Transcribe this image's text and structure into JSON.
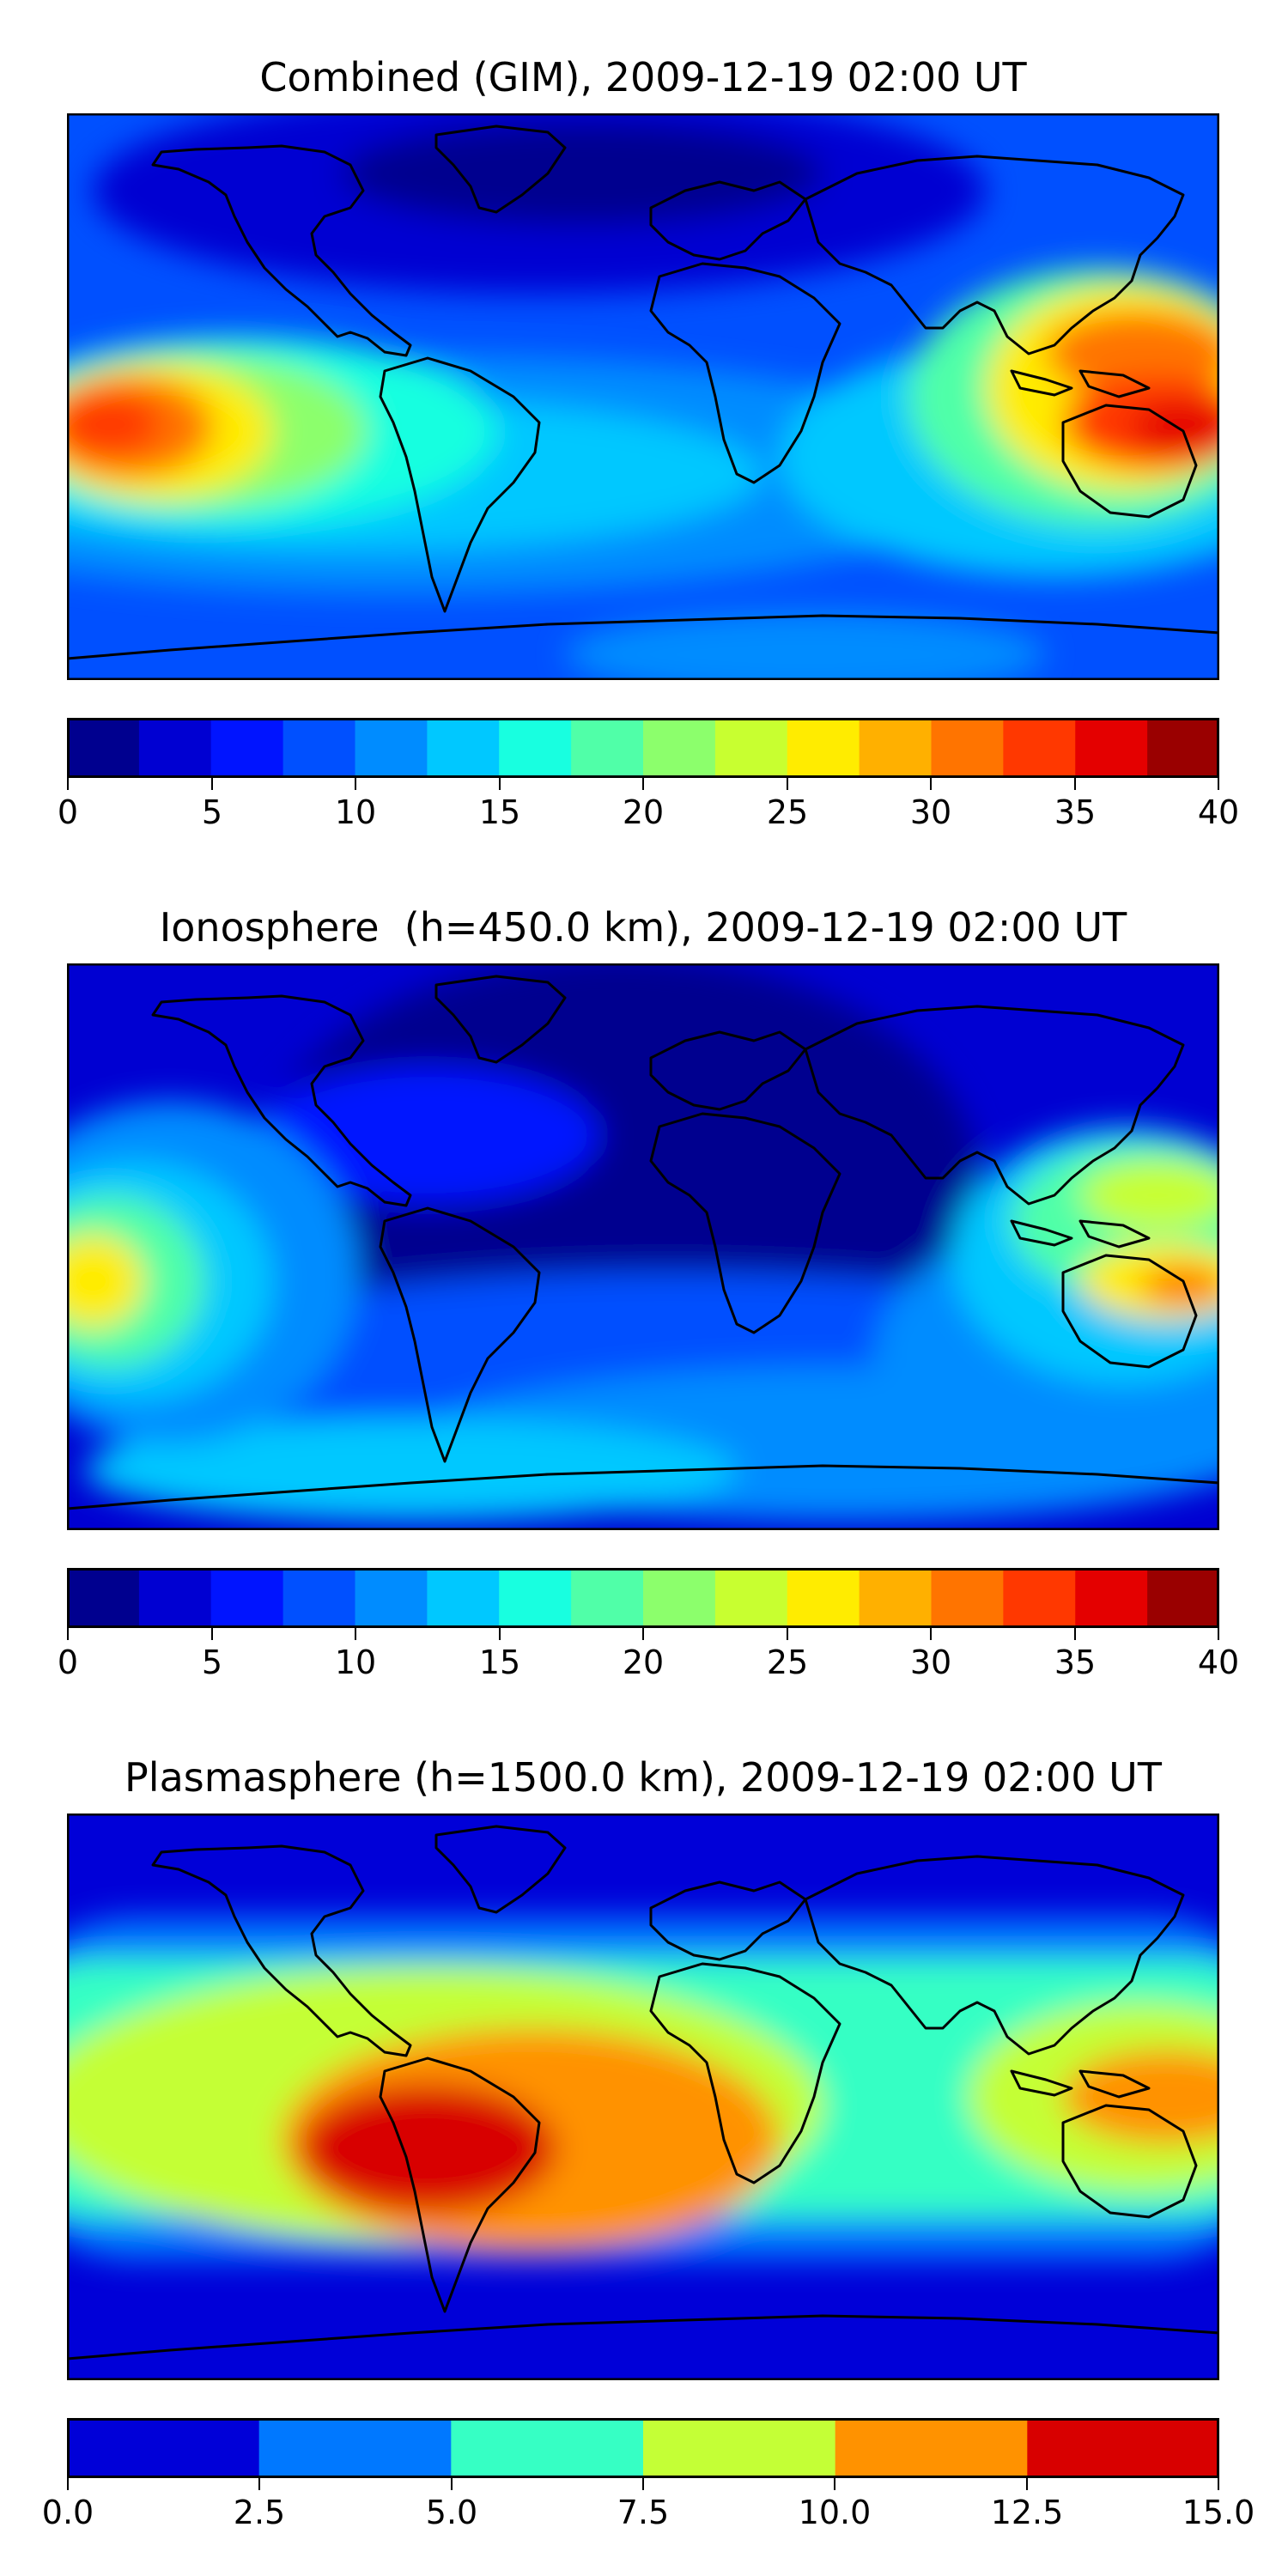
{
  "panels": [
    {
      "title": "Combined (GIM), 2009-12-19 02:00 UT",
      "colorbar": {
        "levels": [
          0,
          2.5,
          5,
          7.5,
          10,
          12.5,
          15,
          17.5,
          20,
          22.5,
          25,
          27.5,
          30,
          32.5,
          35,
          37.5,
          40
        ],
        "colors": [
          "#00008f",
          "#0000d2",
          "#0014ff",
          "#0050ff",
          "#008cff",
          "#00c8ff",
          "#18ffe0",
          "#50ffa8",
          "#8cff6c",
          "#c8ff30",
          "#ffec00",
          "#ffb000",
          "#ff7400",
          "#ff3800",
          "#e40000",
          "#9a0000"
        ],
        "tick_labels": [
          "0",
          "5",
          "10",
          "15",
          "20",
          "25",
          "30",
          "35",
          "40"
        ]
      }
    },
    {
      "title": "Ionosphere  (h=450.0 km), 2009-12-19 02:00 UT",
      "colorbar": {
        "levels": [
          0,
          2.5,
          5,
          7.5,
          10,
          12.5,
          15,
          17.5,
          20,
          22.5,
          25,
          27.5,
          30,
          32.5,
          35,
          37.5,
          40
        ],
        "colors": [
          "#00008f",
          "#0000d2",
          "#0014ff",
          "#0050ff",
          "#008cff",
          "#00c8ff",
          "#18ffe0",
          "#50ffa8",
          "#8cff6c",
          "#c8ff30",
          "#ffec00",
          "#ffb000",
          "#ff7400",
          "#ff3800",
          "#e40000",
          "#9a0000"
        ],
        "tick_labels": [
          "0",
          "5",
          "10",
          "15",
          "20",
          "25",
          "30",
          "35",
          "40"
        ]
      }
    },
    {
      "title": "Plasmasphere (h=1500.0 km), 2009-12-19 02:00 UT",
      "colorbar": {
        "levels": [
          0.0,
          2.5,
          5.0,
          7.5,
          10.0,
          12.5,
          15.0
        ],
        "colors": [
          "#0000d8",
          "#0078ff",
          "#36ffc4",
          "#c4ff36",
          "#ff9200",
          "#d80000"
        ],
        "tick_labels": [
          "0.0",
          "2.5",
          "5.0",
          "7.5",
          "10.0",
          "12.5",
          "15.0"
        ]
      }
    }
  ]
}
